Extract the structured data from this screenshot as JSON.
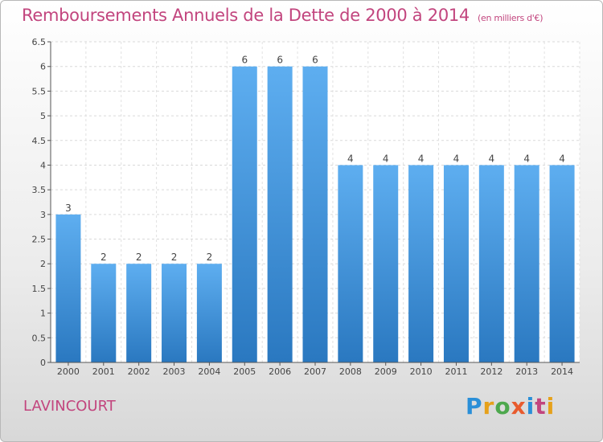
{
  "header": {
    "title": "Remboursements Annuels de la Dette de 2000 à 2014",
    "unit": "(en milliers d'€)"
  },
  "footer": {
    "commune": "LAVINCOURT",
    "logo_letters": [
      "P",
      "r",
      "o",
      "x",
      "i",
      "t",
      "i"
    ]
  },
  "colors": {
    "title": "#c2457e",
    "bar_top": "#5eaef0",
    "bar_bottom": "#2a78c0"
  },
  "chart_data": {
    "type": "bar",
    "title": "Remboursements Annuels de la Dette de 2000 à 2014",
    "categories": [
      "2000",
      "2001",
      "2002",
      "2003",
      "2004",
      "2005",
      "2006",
      "2007",
      "2008",
      "2009",
      "2010",
      "2011",
      "2012",
      "2013",
      "2014"
    ],
    "values": [
      3,
      2,
      2,
      2,
      2,
      6,
      6,
      6,
      4,
      4,
      4,
      4,
      4,
      4,
      4
    ],
    "ylim": [
      0,
      6.5
    ],
    "yticks": [
      "0",
      "0.5",
      "1",
      "1.5",
      "2",
      "2.5",
      "3",
      "3.5",
      "4",
      "4.5",
      "5",
      "5.5",
      "6",
      "6.5"
    ],
    "grid": true
  }
}
